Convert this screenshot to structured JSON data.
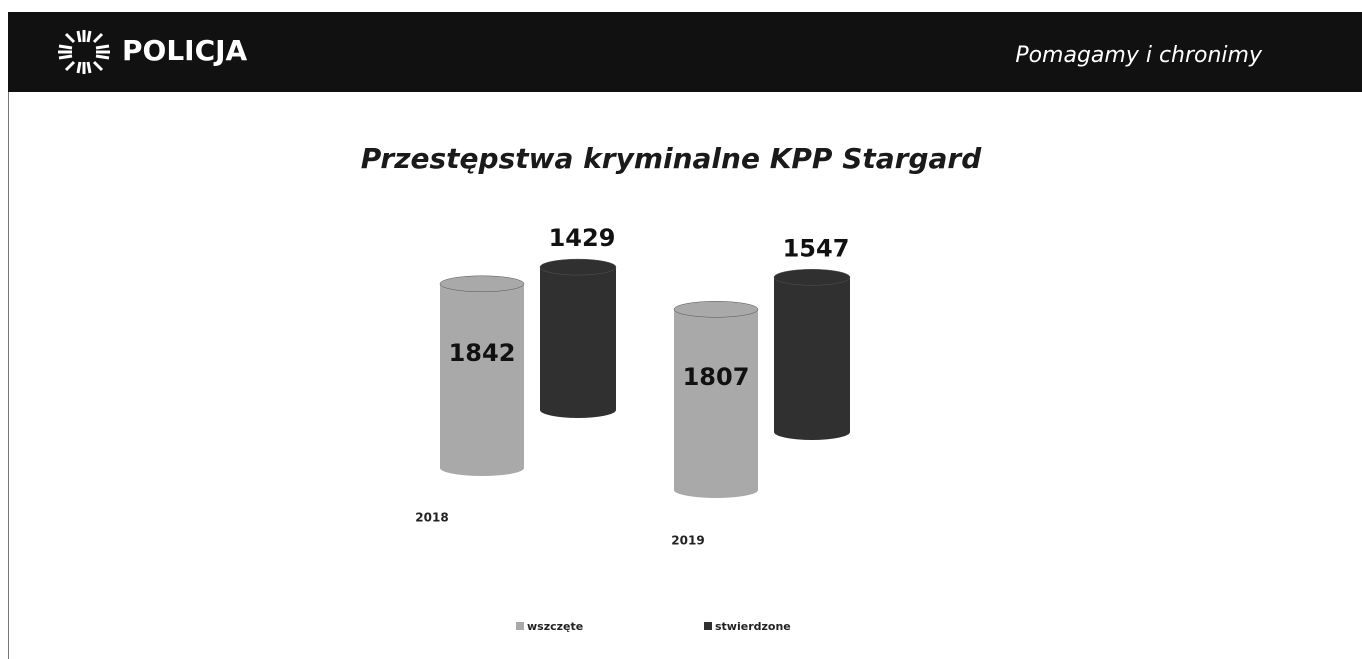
{
  "header": {
    "brand": "POLICJA",
    "slogan": "Pomagamy i chronimy"
  },
  "chart_data": {
    "type": "bar3d-cylinder",
    "title": "Przestępstwa kryminalne KPP Stargard",
    "categories": [
      "2018",
      "2019"
    ],
    "series": [
      {
        "name": "wszczęte",
        "color": "#a9a9a9",
        "values": [
          1842,
          1807
        ]
      },
      {
        "name": "stwierdzone",
        "color": "#303030",
        "values": [
          1429,
          1547
        ]
      }
    ]
  }
}
